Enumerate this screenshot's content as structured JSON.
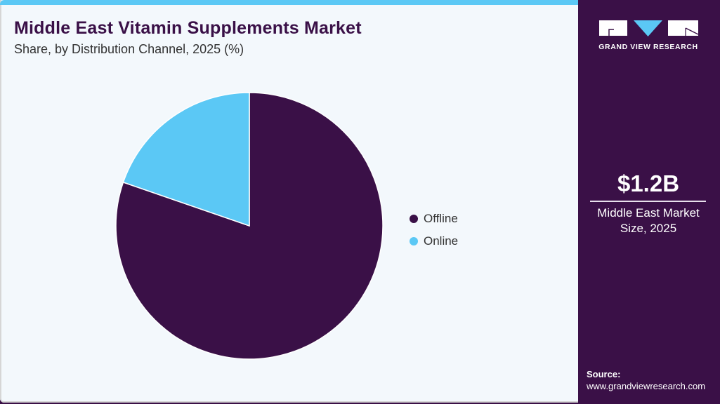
{
  "header": {
    "title": "Middle East Vitamin Supplements Market",
    "subtitle": "Share, by Distribution Channel, 2025 (%)"
  },
  "colors": {
    "accent": "#5bc8f5",
    "brand_dark": "#3a1047",
    "background": "#f3f8fc"
  },
  "chart_data": {
    "type": "pie",
    "title": "Middle East Vitamin Supplements Market",
    "subtitle": "Share, by Distribution Channel, 2025 (%)",
    "categories": [
      "Offline",
      "Online"
    ],
    "values": [
      80.3,
      19.7
    ],
    "colors": [
      "#3a1047",
      "#5bc8f5"
    ],
    "start_angle_deg": 0,
    "direction": "clockwise from 12 o'clock (offline first)",
    "legend_position": "right"
  },
  "legend": {
    "items": [
      {
        "label": "Offline",
        "color": "#3a1047"
      },
      {
        "label": "Online",
        "color": "#5bc8f5"
      }
    ]
  },
  "side_panel": {
    "logo_text": "GRAND VIEW RESEARCH",
    "market_value": "$1.2B",
    "market_label_line1": "Middle East Market",
    "market_label_line2": "Size, 2025",
    "source_label": "Source:",
    "source_url": "www.grandviewresearch.com"
  }
}
